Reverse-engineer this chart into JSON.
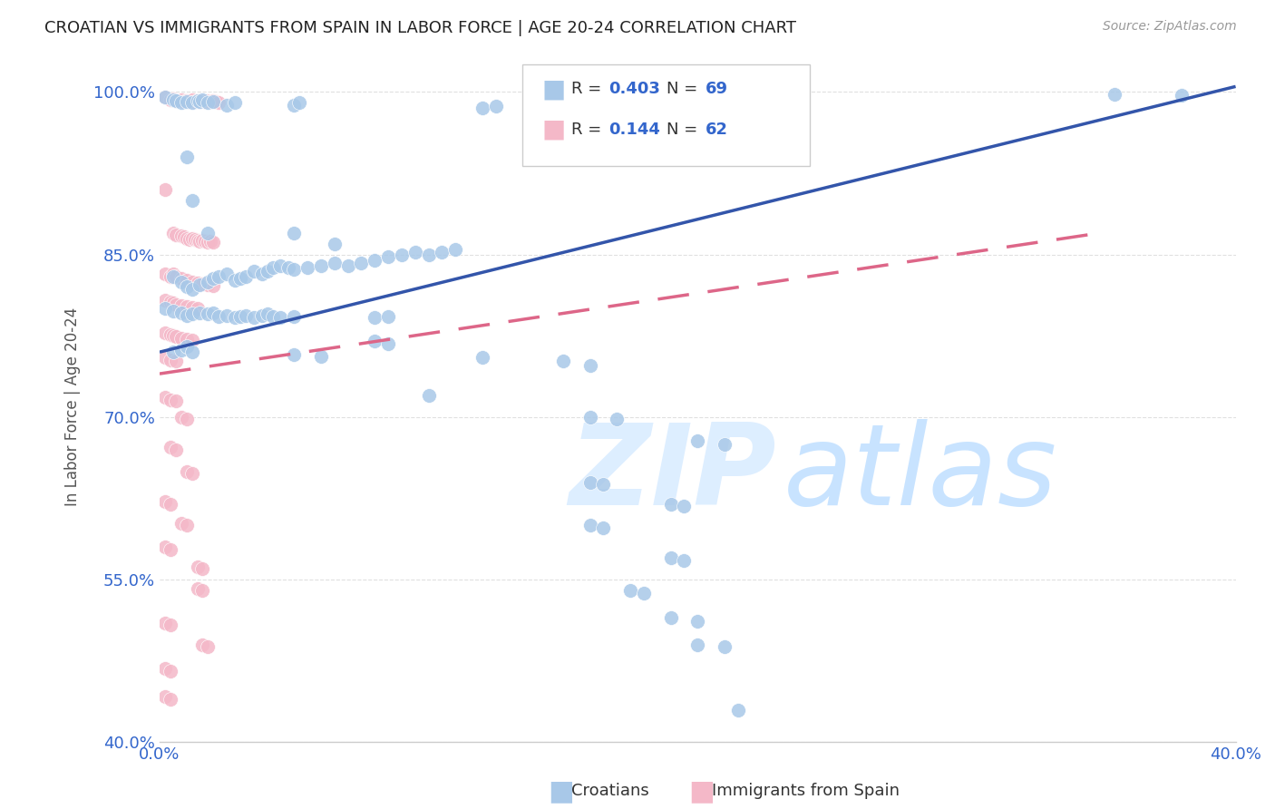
{
  "title": "CROATIAN VS IMMIGRANTS FROM SPAIN IN LABOR FORCE | AGE 20-24 CORRELATION CHART",
  "source": "Source: ZipAtlas.com",
  "ylabel": "In Labor Force | Age 20-24",
  "xlim": [
    0.0,
    0.4
  ],
  "ylim": [
    0.4,
    1.02
  ],
  "xticks": [
    0.0,
    0.08,
    0.16,
    0.24,
    0.32,
    0.4
  ],
  "xticklabels": [
    "0.0%",
    "",
    "",
    "",
    "",
    "40.0%"
  ],
  "ytick_positions": [
    0.4,
    0.55,
    0.7,
    0.85,
    1.0
  ],
  "yticklabels": [
    "40.0%",
    "55.0%",
    "70.0%",
    "85.0%",
    "100.0%"
  ],
  "blue_color": "#a8c8e8",
  "pink_color": "#f4b8c8",
  "blue_line_color": "#3355aa",
  "pink_line_color": "#dd6688",
  "background_color": "#ffffff",
  "grid_color": "#e0e0e0",
  "blue_line": [
    [
      0.0,
      0.76
    ],
    [
      0.4,
      1.005
    ]
  ],
  "pink_line": [
    [
      0.0,
      0.74
    ],
    [
      0.35,
      0.87
    ]
  ],
  "blue_scatter": [
    [
      0.002,
      0.995
    ],
    [
      0.005,
      0.993
    ],
    [
      0.006,
      0.992
    ],
    [
      0.008,
      0.99
    ],
    [
      0.01,
      0.991
    ],
    [
      0.012,
      0.99
    ],
    [
      0.014,
      0.992
    ],
    [
      0.015,
      0.991
    ],
    [
      0.016,
      0.993
    ],
    [
      0.018,
      0.99
    ],
    [
      0.02,
      0.991
    ],
    [
      0.025,
      0.988
    ],
    [
      0.028,
      0.99
    ],
    [
      0.05,
      0.988
    ],
    [
      0.052,
      0.99
    ],
    [
      0.12,
      0.985
    ],
    [
      0.125,
      0.987
    ],
    [
      0.355,
      0.998
    ],
    [
      0.38,
      0.997
    ],
    [
      0.01,
      0.94
    ],
    [
      0.012,
      0.9
    ],
    [
      0.018,
      0.87
    ],
    [
      0.05,
      0.87
    ],
    [
      0.065,
      0.86
    ],
    [
      0.005,
      0.83
    ],
    [
      0.008,
      0.825
    ],
    [
      0.01,
      0.82
    ],
    [
      0.012,
      0.818
    ],
    [
      0.015,
      0.822
    ],
    [
      0.018,
      0.825
    ],
    [
      0.02,
      0.828
    ],
    [
      0.022,
      0.83
    ],
    [
      0.025,
      0.832
    ],
    [
      0.028,
      0.826
    ],
    [
      0.03,
      0.828
    ],
    [
      0.032,
      0.83
    ],
    [
      0.035,
      0.835
    ],
    [
      0.038,
      0.832
    ],
    [
      0.04,
      0.835
    ],
    [
      0.042,
      0.838
    ],
    [
      0.045,
      0.84
    ],
    [
      0.048,
      0.838
    ],
    [
      0.05,
      0.836
    ],
    [
      0.055,
      0.838
    ],
    [
      0.06,
      0.84
    ],
    [
      0.065,
      0.842
    ],
    [
      0.07,
      0.84
    ],
    [
      0.075,
      0.842
    ],
    [
      0.08,
      0.845
    ],
    [
      0.085,
      0.848
    ],
    [
      0.09,
      0.85
    ],
    [
      0.095,
      0.852
    ],
    [
      0.1,
      0.85
    ],
    [
      0.105,
      0.852
    ],
    [
      0.11,
      0.855
    ],
    [
      0.002,
      0.8
    ],
    [
      0.005,
      0.798
    ],
    [
      0.008,
      0.796
    ],
    [
      0.01,
      0.794
    ],
    [
      0.012,
      0.795
    ],
    [
      0.015,
      0.796
    ],
    [
      0.018,
      0.795
    ],
    [
      0.02,
      0.796
    ],
    [
      0.022,
      0.793
    ],
    [
      0.025,
      0.794
    ],
    [
      0.028,
      0.792
    ],
    [
      0.03,
      0.793
    ],
    [
      0.032,
      0.794
    ],
    [
      0.035,
      0.792
    ],
    [
      0.038,
      0.794
    ],
    [
      0.04,
      0.795
    ],
    [
      0.042,
      0.793
    ],
    [
      0.045,
      0.792
    ],
    [
      0.05,
      0.793
    ],
    [
      0.08,
      0.792
    ],
    [
      0.085,
      0.793
    ],
    [
      0.08,
      0.77
    ],
    [
      0.085,
      0.768
    ],
    [
      0.005,
      0.76
    ],
    [
      0.008,
      0.762
    ],
    [
      0.01,
      0.765
    ],
    [
      0.012,
      0.76
    ],
    [
      0.05,
      0.758
    ],
    [
      0.06,
      0.756
    ],
    [
      0.12,
      0.755
    ],
    [
      0.15,
      0.752
    ],
    [
      0.16,
      0.748
    ],
    [
      0.1,
      0.72
    ],
    [
      0.16,
      0.7
    ],
    [
      0.17,
      0.698
    ],
    [
      0.2,
      0.678
    ],
    [
      0.21,
      0.675
    ],
    [
      0.16,
      0.64
    ],
    [
      0.165,
      0.638
    ],
    [
      0.19,
      0.62
    ],
    [
      0.195,
      0.618
    ],
    [
      0.16,
      0.6
    ],
    [
      0.165,
      0.598
    ],
    [
      0.19,
      0.57
    ],
    [
      0.195,
      0.568
    ],
    [
      0.175,
      0.54
    ],
    [
      0.18,
      0.538
    ],
    [
      0.19,
      0.515
    ],
    [
      0.2,
      0.512
    ],
    [
      0.2,
      0.49
    ],
    [
      0.21,
      0.488
    ],
    [
      0.215,
      0.43
    ]
  ],
  "pink_scatter": [
    [
      0.002,
      0.995
    ],
    [
      0.004,
      0.993
    ],
    [
      0.005,
      0.994
    ],
    [
      0.006,
      0.992
    ],
    [
      0.008,
      0.993
    ],
    [
      0.009,
      0.991
    ],
    [
      0.01,
      0.992
    ],
    [
      0.011,
      0.991
    ],
    [
      0.012,
      0.993
    ],
    [
      0.013,
      0.991
    ],
    [
      0.014,
      0.992
    ],
    [
      0.015,
      0.991
    ],
    [
      0.016,
      0.992
    ],
    [
      0.017,
      0.991
    ],
    [
      0.018,
      0.992
    ],
    [
      0.019,
      0.991
    ],
    [
      0.02,
      0.992
    ],
    [
      0.021,
      0.991
    ],
    [
      0.022,
      0.99
    ],
    [
      0.002,
      0.91
    ],
    [
      0.005,
      0.87
    ],
    [
      0.006,
      0.868
    ],
    [
      0.008,
      0.867
    ],
    [
      0.009,
      0.866
    ],
    [
      0.01,
      0.865
    ],
    [
      0.011,
      0.864
    ],
    [
      0.012,
      0.865
    ],
    [
      0.013,
      0.864
    ],
    [
      0.014,
      0.863
    ],
    [
      0.015,
      0.862
    ],
    [
      0.016,
      0.863
    ],
    [
      0.017,
      0.862
    ],
    [
      0.018,
      0.861
    ],
    [
      0.019,
      0.862
    ],
    [
      0.02,
      0.861
    ],
    [
      0.002,
      0.832
    ],
    [
      0.004,
      0.83
    ],
    [
      0.005,
      0.832
    ],
    [
      0.006,
      0.83
    ],
    [
      0.008,
      0.828
    ],
    [
      0.01,
      0.826
    ],
    [
      0.012,
      0.825
    ],
    [
      0.014,
      0.824
    ],
    [
      0.016,
      0.823
    ],
    [
      0.018,
      0.822
    ],
    [
      0.02,
      0.821
    ],
    [
      0.002,
      0.808
    ],
    [
      0.004,
      0.806
    ],
    [
      0.005,
      0.805
    ],
    [
      0.006,
      0.804
    ],
    [
      0.008,
      0.803
    ],
    [
      0.01,
      0.802
    ],
    [
      0.012,
      0.801
    ],
    [
      0.014,
      0.8
    ],
    [
      0.002,
      0.778
    ],
    [
      0.004,
      0.776
    ],
    [
      0.005,
      0.775
    ],
    [
      0.006,
      0.774
    ],
    [
      0.008,
      0.773
    ],
    [
      0.01,
      0.772
    ],
    [
      0.012,
      0.771
    ],
    [
      0.002,
      0.755
    ],
    [
      0.004,
      0.753
    ],
    [
      0.006,
      0.752
    ],
    [
      0.002,
      0.718
    ],
    [
      0.004,
      0.716
    ],
    [
      0.006,
      0.715
    ],
    [
      0.008,
      0.7
    ],
    [
      0.01,
      0.698
    ],
    [
      0.004,
      0.672
    ],
    [
      0.006,
      0.67
    ],
    [
      0.01,
      0.65
    ],
    [
      0.012,
      0.648
    ],
    [
      0.002,
      0.622
    ],
    [
      0.004,
      0.62
    ],
    [
      0.008,
      0.602
    ],
    [
      0.01,
      0.6
    ],
    [
      0.002,
      0.58
    ],
    [
      0.004,
      0.578
    ],
    [
      0.014,
      0.562
    ],
    [
      0.016,
      0.56
    ],
    [
      0.014,
      0.542
    ],
    [
      0.016,
      0.54
    ],
    [
      0.002,
      0.51
    ],
    [
      0.004,
      0.508
    ],
    [
      0.016,
      0.49
    ],
    [
      0.018,
      0.488
    ],
    [
      0.002,
      0.468
    ],
    [
      0.004,
      0.466
    ],
    [
      0.002,
      0.442
    ],
    [
      0.004,
      0.44
    ]
  ]
}
